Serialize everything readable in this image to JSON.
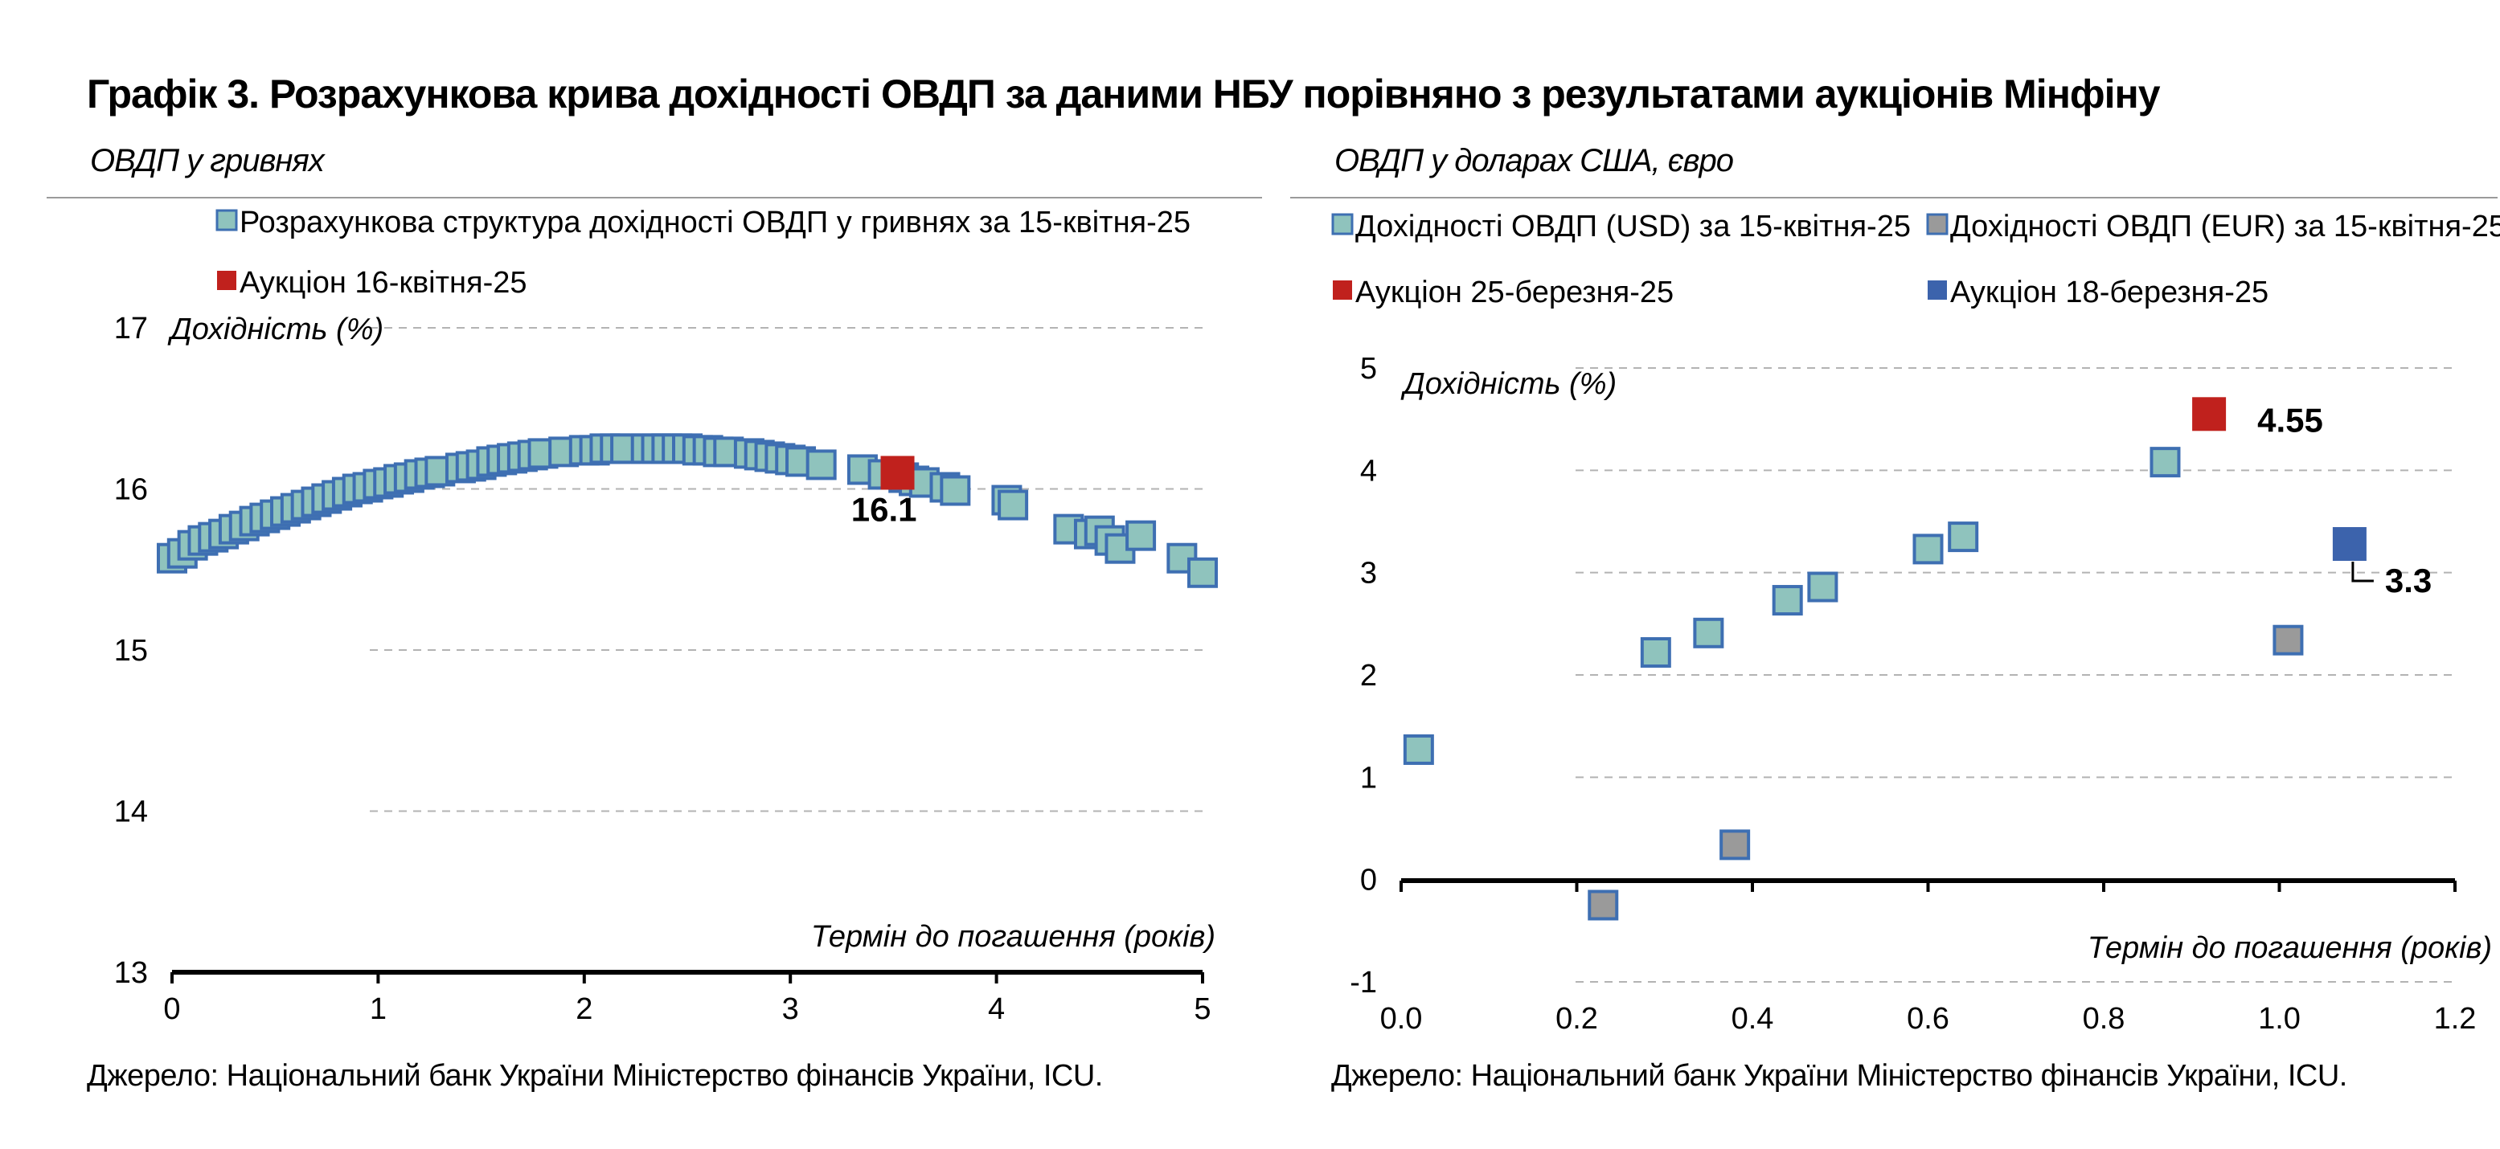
{
  "title": "Графік 3. Розрахункова крива дохідності ОВДП за даними НБУ порівняно з результатами аукціонів Мінфіну",
  "colors": {
    "teal_marker": "#8fc3bd",
    "teal_edge": "#3e6fb2",
    "red_marker": "#c0211d",
    "blue_marker": "#3c63ac",
    "grey_marker": "#9a9a9a",
    "gridline": "#b3b3b3"
  },
  "chart_data": [
    {
      "type": "scatter",
      "subtitle": "ОВДП у гривнях",
      "ylabel": "Дохідність (%)",
      "xlabel": "Термін до погашення (років)",
      "xlim": [
        0,
        5
      ],
      "ylim": [
        13,
        17
      ],
      "xticks": [
        "0",
        "1",
        "2",
        "3",
        "4",
        "5"
      ],
      "yticks": [
        "13",
        "14",
        "15",
        "16",
        "17"
      ],
      "grid": true,
      "legend_position": "top",
      "series": [
        {
          "name": "Розрахункова структура дохідності ОВДП у гривнях за 15-квітня-25",
          "color": "#8fc3bd",
          "x": [
            0.0,
            0.05,
            0.1,
            0.15,
            0.2,
            0.25,
            0.3,
            0.35,
            0.4,
            0.45,
            0.5,
            0.55,
            0.6,
            0.65,
            0.7,
            0.75,
            0.8,
            0.85,
            0.9,
            0.95,
            1.0,
            1.05,
            1.1,
            1.15,
            1.2,
            1.25,
            1.3,
            1.4,
            1.45,
            1.5,
            1.55,
            1.6,
            1.65,
            1.7,
            1.75,
            1.8,
            1.9,
            2.0,
            2.05,
            2.1,
            2.15,
            2.2,
            2.3,
            2.35,
            2.4,
            2.45,
            2.5,
            2.55,
            2.6,
            2.65,
            2.7,
            2.8,
            2.85,
            2.9,
            2.95,
            3.0,
            3.05,
            3.15,
            3.35,
            3.45,
            3.55,
            3.6,
            3.65,
            3.75,
            3.8,
            4.05,
            4.08,
            4.35,
            4.45,
            4.5,
            4.55,
            4.6,
            4.7,
            4.9,
            5.0
          ],
          "y": [
            15.57,
            15.6,
            15.65,
            15.68,
            15.7,
            15.72,
            15.75,
            15.77,
            15.8,
            15.82,
            15.84,
            15.86,
            15.88,
            15.9,
            15.92,
            15.94,
            15.96,
            15.98,
            16.0,
            16.01,
            16.03,
            16.04,
            16.06,
            16.07,
            16.09,
            16.1,
            16.11,
            16.13,
            16.14,
            16.15,
            16.17,
            16.18,
            16.19,
            16.2,
            16.21,
            16.22,
            16.23,
            16.24,
            16.24,
            16.25,
            16.25,
            16.25,
            16.25,
            16.25,
            16.25,
            16.25,
            16.25,
            16.24,
            16.24,
            16.23,
            16.23,
            16.22,
            16.21,
            16.2,
            16.19,
            16.18,
            16.17,
            16.15,
            16.12,
            16.09,
            16.07,
            16.05,
            16.04,
            16.01,
            15.99,
            15.93,
            15.9,
            15.75,
            15.72,
            15.74,
            15.68,
            15.63,
            15.71,
            15.57,
            15.48
          ]
        },
        {
          "name": "Аукціон 16-квітня-25",
          "color": "#c0211d",
          "x": [
            3.52
          ],
          "y": [
            16.1
          ],
          "labels": [
            "16.1"
          ]
        }
      ]
    },
    {
      "type": "scatter",
      "subtitle": "ОВДП у доларах США, євро",
      "ylabel": "Дохідність (%)",
      "xlabel": "Термін до погашення (років)",
      "xlim": [
        0.0,
        1.2
      ],
      "ylim": [
        -1,
        5
      ],
      "xticks": [
        "0.0",
        "0.2",
        "0.4",
        "0.6",
        "0.8",
        "1.0",
        "1.2"
      ],
      "yticks": [
        "-1",
        "0",
        "1",
        "2",
        "3",
        "4",
        "5"
      ],
      "grid": true,
      "legend_position": "top",
      "series": [
        {
          "name": "Дохідності ОВДП (USD) за 15-квітня-25",
          "color": "#8fc3bd",
          "x": [
            0.02,
            0.29,
            0.35,
            0.44,
            0.48,
            0.6,
            0.64,
            0.87
          ],
          "y": [
            1.27,
            2.22,
            2.41,
            2.73,
            2.86,
            3.23,
            3.35,
            4.08
          ]
        },
        {
          "name": "Дохідності ОВДП (EUR) за 15-квітня-25",
          "color": "#9a9a9a",
          "x": [
            0.23,
            0.38,
            1.01
          ],
          "y": [
            -0.25,
            0.34,
            2.34
          ]
        },
        {
          "name": "Аукціон 25-березня-25",
          "color": "#c0211d",
          "x": [
            0.92
          ],
          "y": [
            4.55
          ],
          "labels": [
            "4.55"
          ]
        },
        {
          "name": "Аукціон 18-березня-25",
          "color": "#3c63ac",
          "x": [
            1.08
          ],
          "y": [
            3.28
          ],
          "labels": [
            "3.3"
          ]
        }
      ]
    }
  ],
  "source_left": "Джерело: Національний банк України Міністерство фінансів України, ICU.",
  "source_right": "Джерело: Національний банк України Міністерство фінансів України, ICU."
}
